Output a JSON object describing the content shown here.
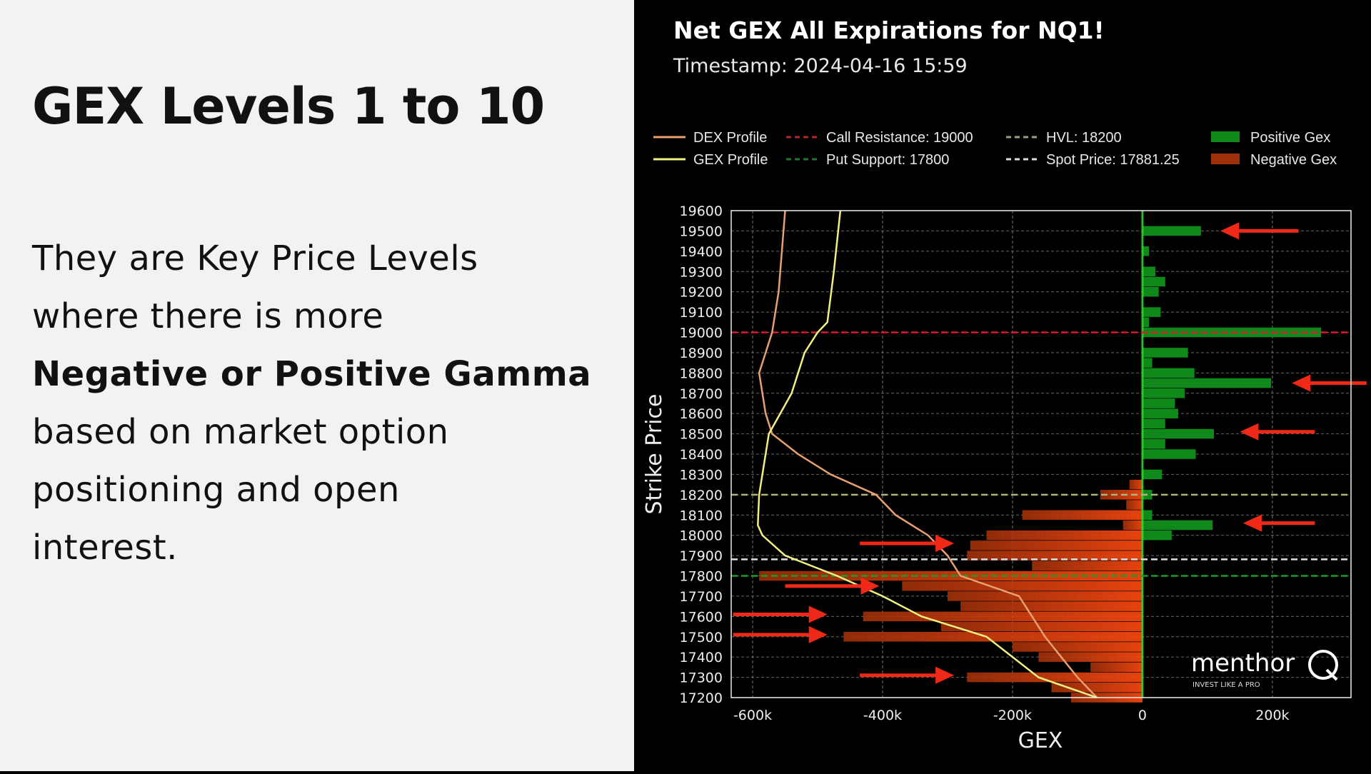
{
  "slide": {
    "title": "GEX Levels 1 to 10",
    "body_line1": "They are Key Price Levels",
    "body_line2": "where there is more",
    "body_bold": "Negative or Positive Gamma",
    "body_line4": "based on market option",
    "body_line5": "positioning and open",
    "body_line6": "interest."
  },
  "logo": {
    "text": "menthor",
    "letter": "Q",
    "tagline": "INVEST LIKE A PRO"
  },
  "chart_data": {
    "type": "bar",
    "orientation": "horizontal",
    "title": "Net GEX All Expirations for NQ1!",
    "subtitle": "Timestamp: 2024-04-16 15:59",
    "xlabel": "GEX",
    "ylabel": "Strike Price",
    "xlim": [
      -633000,
      321000
    ],
    "ylim": [
      17200,
      19600
    ],
    "grid": true,
    "legend_placement": "top",
    "x_ticks": [
      {
        "v": -600000,
        "label": "-600k"
      },
      {
        "v": -400000,
        "label": "-400k"
      },
      {
        "v": -200000,
        "label": "-200k"
      },
      {
        "v": 0,
        "label": "0"
      },
      {
        "v": 200000,
        "label": "200k"
      }
    ],
    "y_ticks": [
      19600,
      19500,
      19400,
      19300,
      19200,
      19100,
      19000,
      18900,
      18800,
      18700,
      18600,
      18500,
      18400,
      18300,
      18200,
      18100,
      18000,
      17900,
      17800,
      17700,
      17600,
      17500,
      17400,
      17300,
      17200
    ],
    "legend": [
      {
        "label": "DEX Profile",
        "style": "line",
        "color": "#e8a070"
      },
      {
        "label": "GEX Profile",
        "style": "line",
        "color": "#f0f080"
      },
      {
        "label": "Call Resistance: 19000",
        "style": "dash",
        "color": "#c0202a"
      },
      {
        "label": "Put Support: 17800",
        "style": "dash",
        "color": "#1e7a2a"
      },
      {
        "label": "HVL: 18200",
        "style": "dash",
        "color": "#a0a080"
      },
      {
        "label": "Spot Price: 17881.25",
        "style": "dash",
        "color": "#dddddd"
      },
      {
        "label": "Positive Gex",
        "style": "patch",
        "color": "#0f8a1a"
      },
      {
        "label": "Negative Gex",
        "style": "patch",
        "color": "#a0300a"
      }
    ],
    "levels": [
      {
        "name": "call-resistance",
        "value": 19000,
        "color": "#d02030"
      },
      {
        "name": "put-support",
        "value": 17800,
        "color": "#1e9a2a"
      },
      {
        "name": "hvl",
        "value": 18200,
        "color": "#b0b080"
      },
      {
        "name": "spot-price",
        "value": 17881.25,
        "color": "#dddddd"
      }
    ],
    "colors": {
      "positive": "#0f8a1a",
      "negative": "#a0300a",
      "negative_near": "#ff4a10",
      "positive_near": "#30e030"
    },
    "positive_gex": [
      [
        19500,
        90000
      ],
      [
        19400,
        10000
      ],
      [
        19300,
        20000
      ],
      [
        19250,
        35000
      ],
      [
        19200,
        25000
      ],
      [
        19100,
        28000
      ],
      [
        19050,
        10000
      ],
      [
        19000,
        275000
      ],
      [
        18900,
        70000
      ],
      [
        18850,
        15000
      ],
      [
        18800,
        80000
      ],
      [
        18750,
        198000
      ],
      [
        18700,
        65000
      ],
      [
        18650,
        50000
      ],
      [
        18600,
        55000
      ],
      [
        18550,
        35000
      ],
      [
        18500,
        110000
      ],
      [
        18450,
        35000
      ],
      [
        18400,
        82000
      ],
      [
        18300,
        30000
      ],
      [
        18200,
        15000
      ],
      [
        18100,
        15000
      ],
      [
        18050,
        108000
      ],
      [
        18000,
        45000
      ]
    ],
    "negative_gex": [
      [
        18250,
        -20000
      ],
      [
        18200,
        -65000
      ],
      [
        18150,
        -25000
      ],
      [
        18100,
        -185000
      ],
      [
        18050,
        -30000
      ],
      [
        18000,
        -240000
      ],
      [
        17950,
        -265000
      ],
      [
        17900,
        -270000
      ],
      [
        17850,
        -170000
      ],
      [
        17800,
        -590000
      ],
      [
        17750,
        -370000
      ],
      [
        17700,
        -300000
      ],
      [
        17650,
        -280000
      ],
      [
        17600,
        -430000
      ],
      [
        17550,
        -310000
      ],
      [
        17500,
        -460000
      ],
      [
        17450,
        -200000
      ],
      [
        17400,
        -160000
      ],
      [
        17350,
        -80000
      ],
      [
        17300,
        -270000
      ],
      [
        17250,
        -140000
      ],
      [
        17200,
        -110000
      ]
    ],
    "gex_profile": [
      [
        19600,
        -465000
      ],
      [
        19300,
        -475000
      ],
      [
        19050,
        -485000
      ],
      [
        19000,
        -500000
      ],
      [
        18900,
        -520000
      ],
      [
        18700,
        -540000
      ],
      [
        18500,
        -575000
      ],
      [
        18300,
        -585000
      ],
      [
        18200,
        -590000
      ],
      [
        18050,
        -592000
      ],
      [
        18000,
        -585000
      ],
      [
        17900,
        -550000
      ],
      [
        17800,
        -470000
      ],
      [
        17700,
        -400000
      ],
      [
        17600,
        -340000
      ],
      [
        17500,
        -240000
      ],
      [
        17400,
        -200000
      ],
      [
        17300,
        -160000
      ],
      [
        17200,
        -70000
      ]
    ],
    "dex_profile": [
      [
        19600,
        -550000
      ],
      [
        19200,
        -560000
      ],
      [
        19000,
        -570000
      ],
      [
        18800,
        -590000
      ],
      [
        18600,
        -580000
      ],
      [
        18500,
        -570000
      ],
      [
        18400,
        -530000
      ],
      [
        18300,
        -480000
      ],
      [
        18200,
        -410000
      ],
      [
        18100,
        -380000
      ],
      [
        18000,
        -330000
      ],
      [
        17900,
        -300000
      ],
      [
        17800,
        -280000
      ],
      [
        17700,
        -190000
      ],
      [
        17600,
        -170000
      ],
      [
        17500,
        -150000
      ],
      [
        17400,
        -125000
      ],
      [
        17300,
        -100000
      ],
      [
        17200,
        -70000
      ]
    ],
    "annotations": [
      {
        "type": "arrow",
        "y": 19500,
        "from": 240000,
        "to": 120000
      },
      {
        "type": "arrow",
        "y": 18750,
        "from": 345000,
        "to": 230000
      },
      {
        "type": "arrow",
        "y": 18510,
        "from": 265000,
        "to": 150000
      },
      {
        "type": "arrow",
        "y": 18060,
        "from": 265000,
        "to": 155000
      },
      {
        "type": "arrow",
        "y": 17960,
        "from": -435000,
        "to": -290000
      },
      {
        "type": "arrow",
        "y": 17750,
        "from": -550000,
        "to": -405000
      },
      {
        "type": "arrow",
        "y": 17610,
        "from": -630000,
        "to": -485000
      },
      {
        "type": "arrow",
        "y": 17510,
        "from": -630000,
        "to": -485000
      },
      {
        "type": "arrow",
        "y": 17310,
        "from": -435000,
        "to": -290000
      }
    ]
  }
}
